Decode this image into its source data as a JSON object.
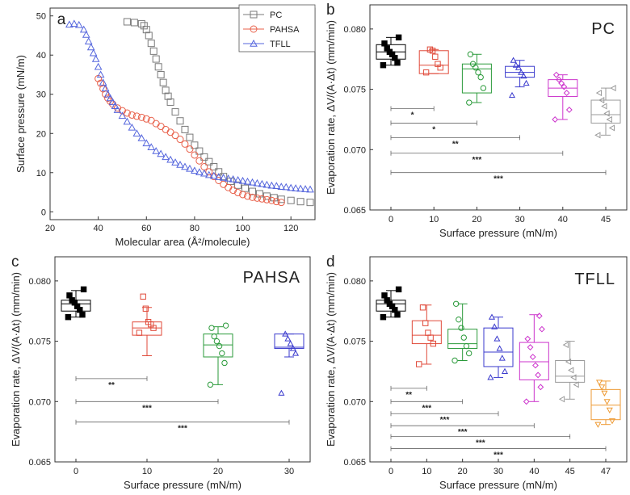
{
  "chart_data": [
    {
      "panel": "a",
      "type": "scatter",
      "xlabel": "Molecular area (Å²/molecule)",
      "ylabel": "Surface pressure (mN/m)",
      "xlim": [
        20,
        130
      ],
      "ylim": [
        -2,
        52
      ],
      "xticks": [
        20,
        40,
        60,
        80,
        100,
        120
      ],
      "yticks": [
        0,
        10,
        20,
        30,
        40,
        50
      ],
      "legend_position": "top-center",
      "series": [
        {
          "name": "PC",
          "color": "#7a7a7a",
          "marker": "square",
          "x": [
            52,
            55,
            58,
            59,
            60,
            61,
            62,
            63,
            64,
            65,
            66,
            67,
            68,
            69,
            70,
            72,
            74,
            76,
            78,
            80,
            82,
            84,
            86,
            88,
            90,
            92,
            95,
            98,
            101,
            104,
            107,
            110,
            113,
            116,
            120,
            124,
            128
          ],
          "y": [
            48.5,
            48.3,
            48,
            47.5,
            46.5,
            45,
            43,
            41,
            39,
            37,
            35,
            33,
            31,
            29.5,
            28,
            25.5,
            23.2,
            21,
            19,
            17,
            15.5,
            14,
            12.8,
            11.5,
            10.2,
            9,
            7.8,
            6.8,
            6,
            5.2,
            4.6,
            4,
            3.6,
            3.2,
            2.9,
            2.6,
            2.4
          ]
        },
        {
          "name": "PAHSA",
          "color": "#e8604a",
          "marker": "circle",
          "x": [
            40,
            41,
            42,
            43,
            44,
            45,
            46,
            48,
            50,
            52,
            54,
            56,
            58,
            60,
            62,
            64,
            66,
            68,
            70,
            72,
            74,
            76,
            78,
            80,
            82,
            84,
            86,
            88,
            90,
            92,
            94,
            96,
            98,
            100,
            102,
            104,
            106,
            108,
            110,
            112,
            114,
            116
          ],
          "y": [
            34,
            32.8,
            31.4,
            30,
            29,
            28.2,
            27.5,
            26.5,
            25.8,
            25.2,
            24.7,
            24.4,
            24.1,
            23.7,
            23.3,
            22.5,
            21.8,
            21,
            20.3,
            19.5,
            18.5,
            17.3,
            16,
            14.5,
            13,
            11.5,
            10.2,
            9,
            8,
            7,
            6.2,
            5.5,
            4.9,
            4.4,
            4,
            3.7,
            3.5,
            3.3,
            3.1,
            2.9,
            2.6,
            2.4
          ]
        },
        {
          "name": "TFLL",
          "color": "#5566dd",
          "marker": "triangle",
          "x": [
            28,
            30,
            32,
            34,
            35,
            36,
            37,
            38,
            39,
            40,
            41,
            42,
            43,
            44,
            45,
            46,
            47,
            48,
            50,
            52,
            54,
            56,
            58,
            60,
            62,
            64,
            66,
            68,
            70,
            72,
            74,
            76,
            78,
            80,
            82,
            84,
            86,
            88,
            90,
            92,
            94,
            96,
            98,
            100,
            102,
            104,
            106,
            108,
            110,
            112,
            114,
            116,
            118,
            120,
            122,
            124,
            126,
            128
          ],
          "y": [
            47.8,
            48,
            47.7,
            46.5,
            45.2,
            43.5,
            42,
            40.5,
            39,
            37,
            35,
            33,
            31.5,
            30,
            29,
            28,
            27,
            26,
            24.5,
            23,
            21.5,
            20,
            18.8,
            17.5,
            16.5,
            15.5,
            14.8,
            14,
            13.3,
            12.6,
            12,
            11.5,
            11,
            10.5,
            10.1,
            9.8,
            9.4,
            9.2,
            8.9,
            8.7,
            8.5,
            8.3,
            8.1,
            7.9,
            7.7,
            7.5,
            7.3,
            7.1,
            6.9,
            6.7,
            6.6,
            6.4,
            6.3,
            6.1,
            6,
            5.9,
            5.8,
            5.7
          ]
        }
      ]
    },
    {
      "panel": "b",
      "type": "box",
      "title": "PC",
      "xlabel": "Surface pressure (mN/m)",
      "ylabel": "Evaporation rate, ΔV/(A·Δt) (mm/min)",
      "ylim": [
        0.065,
        0.082
      ],
      "yticks": [
        "0.065",
        "0.070",
        "0.075",
        "0.080"
      ],
      "categories": [
        "0",
        "10",
        "20",
        "30",
        "40",
        "45"
      ],
      "boxes": [
        {
          "cat": "0",
          "color": "#000000",
          "marker": "square",
          "q1": 0.0775,
          "median": 0.0781,
          "q3": 0.0787,
          "whislo": 0.077,
          "whishi": 0.0793,
          "points": [
            0.077,
            0.0772,
            0.0776,
            0.0779,
            0.0781,
            0.0784,
            0.0788,
            0.0793
          ]
        },
        {
          "cat": "10",
          "color": "#e04a3a",
          "marker": "square",
          "q1": 0.0763,
          "median": 0.077,
          "q3": 0.0782,
          "whislo": 0.0763,
          "whishi": 0.0783,
          "points": [
            0.0764,
            0.0768,
            0.0771,
            0.0777,
            0.0782,
            0.0783
          ]
        },
        {
          "cat": "20",
          "color": "#2a9a3a",
          "marker": "circle",
          "q1": 0.0747,
          "median": 0.0767,
          "q3": 0.0771,
          "whislo": 0.0739,
          "whishi": 0.0779,
          "points": [
            0.0739,
            0.0751,
            0.076,
            0.0764,
            0.0768,
            0.0771,
            0.0779
          ]
        },
        {
          "cat": "30",
          "color": "#3a3acd",
          "marker": "triangle",
          "q1": 0.076,
          "median": 0.0764,
          "q3": 0.0769,
          "whislo": 0.0752,
          "whishi": 0.0774,
          "points": [
            0.0745,
            0.0755,
            0.0761,
            0.0764,
            0.0768,
            0.077,
            0.0774
          ]
        },
        {
          "cat": "40",
          "color": "#cc33cc",
          "marker": "diamond",
          "q1": 0.0744,
          "median": 0.0751,
          "q3": 0.0758,
          "whislo": 0.0725,
          "whishi": 0.0762,
          "points": [
            0.0725,
            0.0733,
            0.0747,
            0.0752,
            0.0755,
            0.0758,
            0.0762
          ]
        },
        {
          "cat": "45",
          "color": "#9a9a9a",
          "marker": "triangle-left",
          "q1": 0.0722,
          "median": 0.0729,
          "q3": 0.0741,
          "whislo": 0.0712,
          "whishi": 0.0751,
          "points": [
            0.0712,
            0.0718,
            0.0725,
            0.073,
            0.0736,
            0.0741,
            0.0747,
            0.0751
          ]
        }
      ],
      "significance": [
        {
          "from": "0",
          "to": "10",
          "label": "*",
          "y": 0.0734
        },
        {
          "from": "0",
          "to": "20",
          "label": "*",
          "y": 0.0722
        },
        {
          "from": "0",
          "to": "30",
          "label": "**",
          "y": 0.071
        },
        {
          "from": "0",
          "to": "40",
          "label": "***",
          "y": 0.0697
        },
        {
          "from": "0",
          "to": "45",
          "label": "***",
          "y": 0.0681
        }
      ]
    },
    {
      "panel": "c",
      "type": "box",
      "title": "PAHSA",
      "xlabel": "Surface pressure (mN/m)",
      "ylabel": "Evaporation rate, ΔV/(A·Δt) (mm/min)",
      "ylim": [
        0.065,
        0.082
      ],
      "yticks": [
        "0.065",
        "0.070",
        "0.075",
        "0.080"
      ],
      "categories": [
        "0",
        "10",
        "20",
        "30"
      ],
      "boxes": [
        {
          "cat": "0",
          "color": "#000000",
          "marker": "square",
          "q1": 0.0775,
          "median": 0.0781,
          "q3": 0.0784,
          "whislo": 0.077,
          "whishi": 0.0792,
          "points": [
            0.077,
            0.0772,
            0.0776,
            0.0779,
            0.0782,
            0.0784,
            0.0788,
            0.0793
          ]
        },
        {
          "cat": "10",
          "color": "#e04a3a",
          "marker": "square",
          "q1": 0.0755,
          "median": 0.0761,
          "q3": 0.0766,
          "whislo": 0.0738,
          "whishi": 0.0778,
          "points": [
            0.0757,
            0.0761,
            0.0764,
            0.0766,
            0.0777,
            0.0787
          ]
        },
        {
          "cat": "20",
          "color": "#2a9a3a",
          "marker": "circle",
          "q1": 0.0737,
          "median": 0.0747,
          "q3": 0.0756,
          "whislo": 0.0714,
          "whishi": 0.0762,
          "points": [
            0.0714,
            0.0732,
            0.074,
            0.0746,
            0.075,
            0.0754,
            0.0761,
            0.0763
          ]
        },
        {
          "cat": "30",
          "color": "#3a3acd",
          "marker": "triangle",
          "q1": 0.0744,
          "median": 0.0745,
          "q3": 0.0756,
          "whislo": 0.0737,
          "whishi": 0.0756,
          "points": [
            0.0707,
            0.074,
            0.0744,
            0.0748,
            0.0752,
            0.0756
          ]
        }
      ],
      "significance": [
        {
          "from": "0",
          "to": "10",
          "label": "**",
          "y": 0.0719
        },
        {
          "from": "0",
          "to": "20",
          "label": "***",
          "y": 0.07
        },
        {
          "from": "0",
          "to": "30",
          "label": "***",
          "y": 0.0683
        }
      ]
    },
    {
      "panel": "d",
      "type": "box",
      "title": "TFLL",
      "xlabel": "Surface pressure (mN/m)",
      "ylabel": "Evaporation rate, ΔV/(A·Δt) (mm/min)",
      "ylim": [
        0.065,
        0.082
      ],
      "yticks": [
        "0.065",
        "0.070",
        "0.075",
        "0.080"
      ],
      "categories": [
        "0",
        "10",
        "20",
        "30",
        "40",
        "45",
        "47"
      ],
      "boxes": [
        {
          "cat": "0",
          "color": "#000000",
          "marker": "square",
          "q1": 0.0775,
          "median": 0.0781,
          "q3": 0.0784,
          "whislo": 0.077,
          "whishi": 0.0792,
          "points": [
            0.077,
            0.0772,
            0.0776,
            0.0779,
            0.0781,
            0.0784,
            0.0788,
            0.0793
          ]
        },
        {
          "cat": "10",
          "color": "#e04a3a",
          "marker": "square",
          "q1": 0.0748,
          "median": 0.0755,
          "q3": 0.0767,
          "whislo": 0.0731,
          "whishi": 0.078,
          "points": [
            0.0731,
            0.0748,
            0.0753,
            0.0757,
            0.0765,
            0.0778
          ]
        },
        {
          "cat": "20",
          "color": "#2a9a3a",
          "marker": "circle",
          "q1": 0.0744,
          "median": 0.0748,
          "q3": 0.076,
          "whislo": 0.0734,
          "whishi": 0.0781,
          "points": [
            0.0734,
            0.074,
            0.0746,
            0.0753,
            0.0761,
            0.0768,
            0.0781
          ]
        },
        {
          "cat": "30",
          "color": "#3a3acd",
          "marker": "triangle",
          "q1": 0.0729,
          "median": 0.0741,
          "q3": 0.0761,
          "whislo": 0.072,
          "whishi": 0.077,
          "points": [
            0.072,
            0.0725,
            0.0736,
            0.0744,
            0.0752,
            0.0762,
            0.077
          ]
        },
        {
          "cat": "40",
          "color": "#cc33cc",
          "marker": "diamond",
          "q1": 0.0718,
          "median": 0.0733,
          "q3": 0.0749,
          "whislo": 0.07,
          "whishi": 0.0772,
          "points": [
            0.07,
            0.0712,
            0.0722,
            0.073,
            0.0737,
            0.0745,
            0.0752,
            0.076,
            0.0771
          ]
        },
        {
          "cat": "45",
          "color": "#9a9a9a",
          "marker": "triangle-left",
          "q1": 0.0716,
          "median": 0.0721,
          "q3": 0.0734,
          "whislo": 0.0702,
          "whishi": 0.075,
          "points": [
            0.0702,
            0.0714,
            0.072,
            0.0726,
            0.0733,
            0.0747
          ]
        },
        {
          "cat": "47",
          "color": "#ee9a33",
          "marker": "triangle-down",
          "q1": 0.0685,
          "median": 0.0697,
          "q3": 0.071,
          "whislo": 0.0681,
          "whishi": 0.0717,
          "points": [
            0.0681,
            0.0684,
            0.0693,
            0.07,
            0.0707,
            0.0712,
            0.0716
          ]
        }
      ],
      "significance": [
        {
          "from": "0",
          "to": "10",
          "label": "**",
          "y": 0.0711
        },
        {
          "from": "0",
          "to": "20",
          "label": "***",
          "y": 0.07
        },
        {
          "from": "0",
          "to": "30",
          "label": "***",
          "y": 0.069
        },
        {
          "from": "0",
          "to": "40",
          "label": "***",
          "y": 0.068
        },
        {
          "from": "0",
          "to": "45",
          "label": "***",
          "y": 0.0671
        },
        {
          "from": "0",
          "to": "47",
          "label": "***",
          "y": 0.0661
        }
      ]
    }
  ]
}
